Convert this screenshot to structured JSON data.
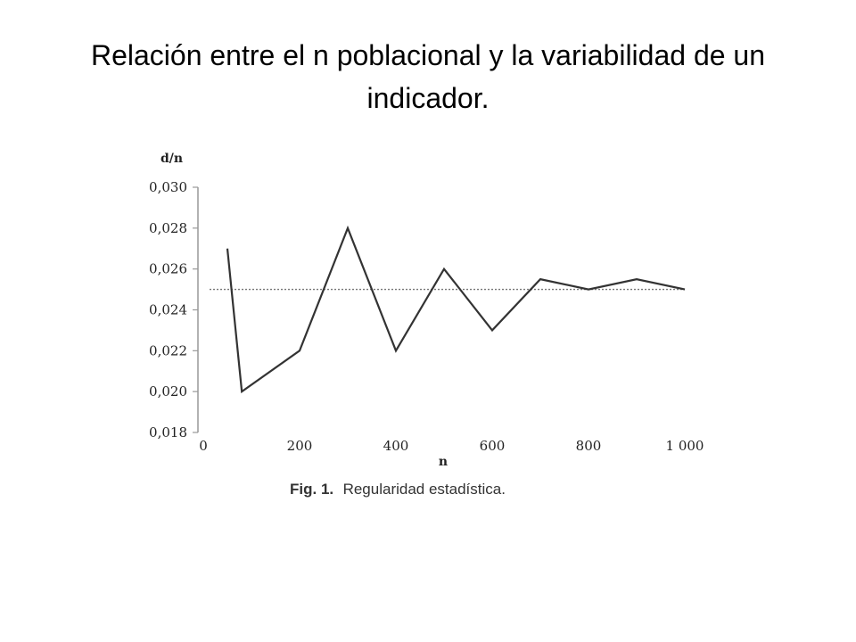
{
  "slide": {
    "title": "Relación entre el n poblacional y la variabilidad de un indicador."
  },
  "chart_data": {
    "type": "line",
    "ylabel": "d/n",
    "xlabel": "n",
    "xlim": [
      0,
      1000
    ],
    "ylim": [
      0.018,
      0.03
    ],
    "x_ticks": [
      0,
      200,
      400,
      600,
      800,
      1000
    ],
    "x_tick_labels": [
      "0",
      "200",
      "400",
      "600",
      "800",
      "1 000"
    ],
    "y_ticks": [
      0.018,
      0.02,
      0.022,
      0.024,
      0.026,
      0.028,
      0.03
    ],
    "y_tick_labels": [
      "0,018",
      "0,020",
      "0,022",
      "0,024",
      "0,026",
      "0,028",
      "0,030"
    ],
    "grid": false,
    "series": [
      {
        "x": [
          50,
          80,
          200,
          300,
          400,
          500,
          600,
          700,
          800,
          900,
          1000
        ],
        "values": [
          0.027,
          0.02,
          0.022,
          0.028,
          0.022,
          0.026,
          0.023,
          0.0255,
          0.025,
          0.0255,
          0.025
        ],
        "color": "#333333"
      }
    ],
    "reference_line": {
      "y": 0.025,
      "style": "dotted",
      "color": "#777777"
    },
    "caption": {
      "prefix": "Fig. 1.",
      "text": "Regularidad estadística."
    }
  }
}
